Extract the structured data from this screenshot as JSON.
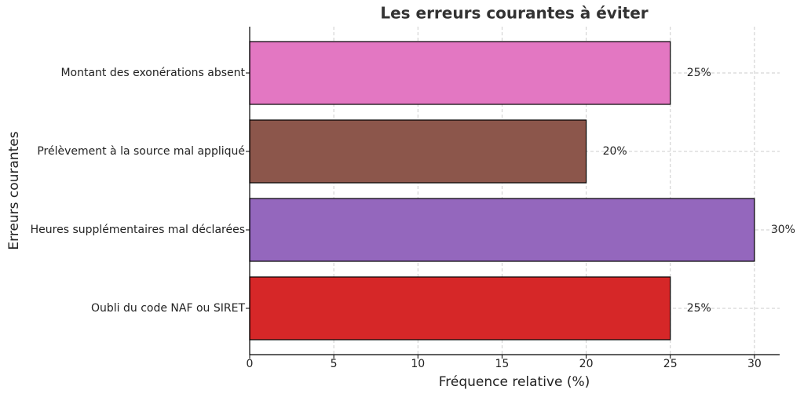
{
  "chart_data": {
    "type": "barh",
    "title": "Les erreurs courantes à éviter",
    "x_label": "Fréquence relative (%)",
    "y_label": "Erreurs courantes",
    "categories": [
      "Oubli du code NAF ou SIRET",
      "Heures supplémentaires mal déclarées",
      "Prélèvement à la source mal appliqué",
      "Montant des exonérations absent"
    ],
    "values": [
      25,
      30,
      20,
      25
    ],
    "value_labels": [
      "25%",
      "30%",
      "20%",
      "25%"
    ],
    "colors": [
      "#d62728",
      "#9467bd",
      "#8c564b",
      "#e377c2"
    ],
    "xlim": [
      0,
      31.5
    ],
    "xticks": [
      0,
      5,
      10,
      15,
      20,
      25,
      30
    ],
    "grid": true
  }
}
